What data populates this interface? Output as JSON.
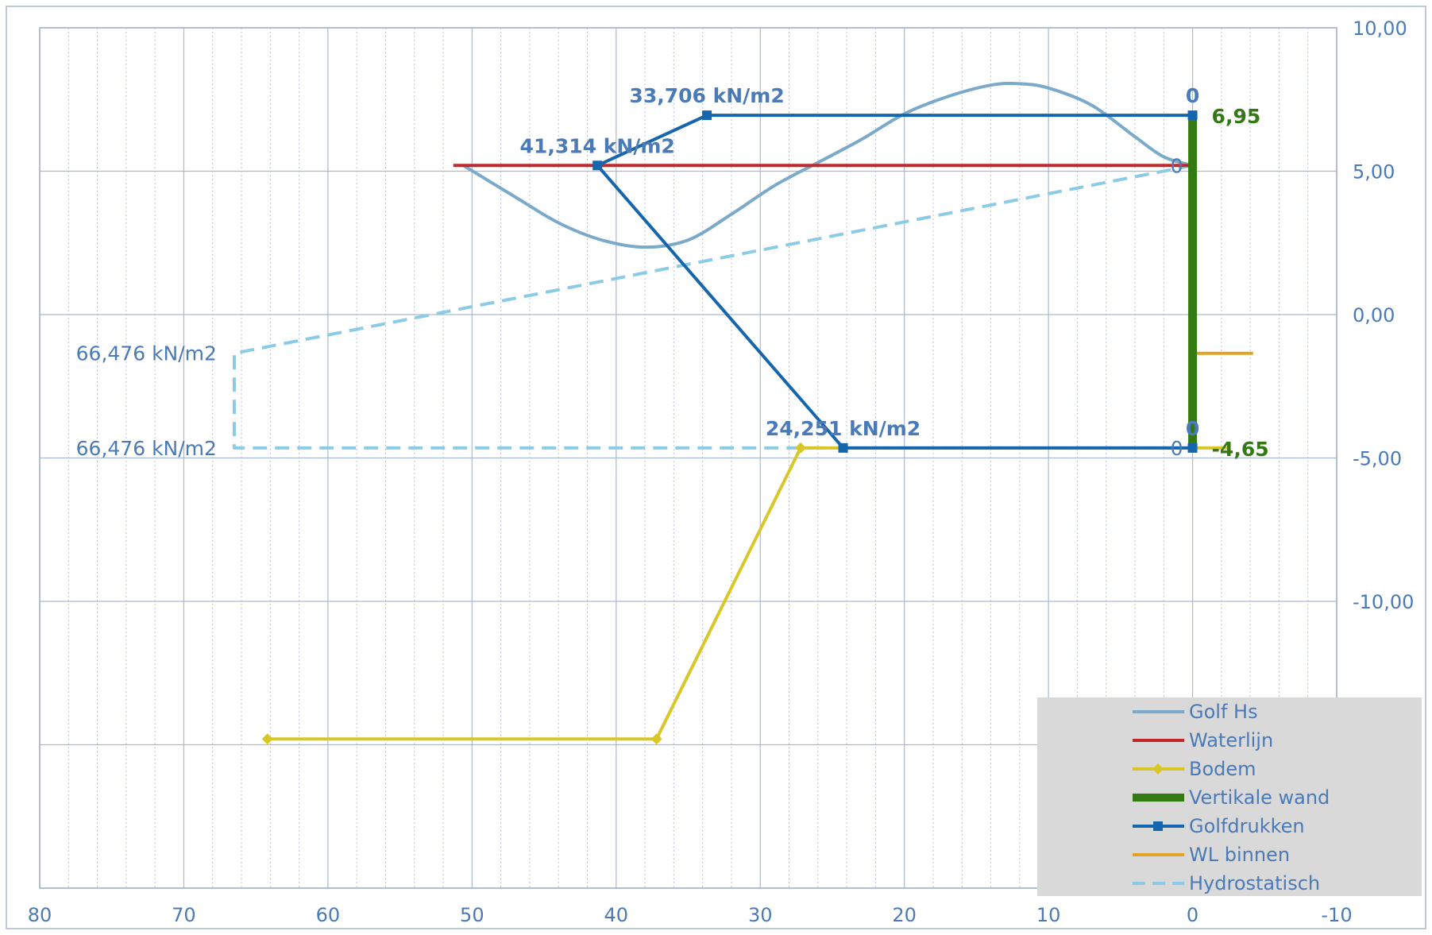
{
  "chart_data": {
    "type": "line",
    "title": "",
    "xlabel": "",
    "ylabel": "",
    "xlim": [
      80,
      -10
    ],
    "ylim": [
      -20,
      10
    ],
    "x_reversed": true,
    "y_axis_position": "right",
    "legend_position": "bottom-right",
    "grid": {
      "major": true,
      "minor_x": true
    },
    "x_ticks": [
      "80",
      "70",
      "60",
      "50",
      "40",
      "30",
      "20",
      "10",
      "0",
      "-10"
    ],
    "x_tick_values": [
      80,
      70,
      60,
      50,
      40,
      30,
      20,
      10,
      0,
      -10
    ],
    "y_ticks": [
      "10,00",
      "5,00",
      "0,00",
      "-5,00",
      "-10,00"
    ],
    "y_tick_values": [
      10,
      5,
      0,
      -5,
      -10
    ],
    "series": [
      {
        "name": "Golf Hs",
        "kind": "curve",
        "color": "#7aa9c9",
        "x": [
          50.6,
          47,
          44,
          41,
          38,
          35,
          32,
          29,
          26,
          23,
          20,
          17,
          14,
          12,
          10,
          7,
          4,
          2,
          0
        ],
        "y": [
          5.2,
          4.1,
          3.2,
          2.6,
          2.35,
          2.6,
          3.5,
          4.5,
          5.3,
          6.1,
          7.0,
          7.6,
          8.0,
          8.05,
          7.9,
          7.3,
          6.2,
          5.5,
          5.2
        ]
      },
      {
        "name": "Waterlijn",
        "kind": "line",
        "color": "#c0282a",
        "x": [
          51.3,
          0
        ],
        "y": [
          5.2,
          5.2
        ]
      },
      {
        "name": "Bodem",
        "kind": "line-diamond",
        "color": "#d9c727",
        "x": [
          64.2,
          37.2,
          27.2,
          0,
          -2.5
        ],
        "y": [
          -14.8,
          -14.8,
          -4.65,
          -4.65,
          -4.65
        ]
      },
      {
        "name": "Vertikale wand",
        "kind": "thick",
        "color": "#347a13",
        "x": [
          0,
          0
        ],
        "y": [
          -4.65,
          6.95
        ]
      },
      {
        "name": "Golfdrukken",
        "kind": "line-square",
        "color": "#1666ad",
        "x": [
          0,
          33.7,
          41.3,
          24.25,
          0
        ],
        "y": [
          6.95,
          6.95,
          5.2,
          -4.65,
          -4.65
        ]
      },
      {
        "name": "WL binnen",
        "kind": "line",
        "color": "#e3a326",
        "x": [
          -0.3,
          -4.2
        ],
        "y": [
          -1.35,
          -1.35
        ]
      },
      {
        "name": "Hydrostatisch",
        "kind": "dashed",
        "color": "#8ccbe6",
        "x": [
          0,
          66.5,
          66.5,
          0
        ],
        "y": [
          5.2,
          -1.35,
          -4.65,
          -4.65
        ]
      }
    ],
    "annotations": [
      {
        "text": "33,706 kN/m2",
        "x": 33.7,
        "y": 6.95,
        "color": "#4a7ab8",
        "bold": true,
        "anchor": "middle",
        "dx": 0,
        "dy": -16
      },
      {
        "text": "41,314 kN/m2",
        "x": 41.3,
        "y": 5.2,
        "color": "#4a7ab8",
        "bold": true,
        "anchor": "middle",
        "dx": 0,
        "dy": -16
      },
      {
        "text": "24,251 kN/m2",
        "x": 24.25,
        "y": -4.65,
        "color": "#4a7ab8",
        "bold": true,
        "anchor": "middle",
        "dx": 0,
        "dy": -16
      },
      {
        "text": "0",
        "x": 0,
        "y": 6.95,
        "color": "#4a7ab8",
        "bold": true,
        "anchor": "middle",
        "dx": 0,
        "dy": -16
      },
      {
        "text": "0",
        "x": 0,
        "y": -4.65,
        "color": "#4a7ab8",
        "bold": true,
        "anchor": "middle",
        "dx": 0,
        "dy": -16
      },
      {
        "text": "6,95",
        "x": 0,
        "y": 6.95,
        "color": "#347a13",
        "bold": true,
        "anchor": "start",
        "dx": 24,
        "dy": 10
      },
      {
        "text": "-4,65",
        "x": 0,
        "y": -4.65,
        "color": "#347a13",
        "bold": true,
        "anchor": "start",
        "dx": 24,
        "dy": 10
      },
      {
        "text": "0",
        "x": 0,
        "y": 5.2,
        "color": "#4a7ab8",
        "bold": false,
        "anchor": "end",
        "dx": -12,
        "dy": 9
      },
      {
        "text": "0",
        "x": 0,
        "y": -4.65,
        "color": "#4a7ab8",
        "bold": false,
        "anchor": "end",
        "dx": -12,
        "dy": 9
      },
      {
        "text": "66,476 kN/m2",
        "x": 66.5,
        "y": -1.35,
        "color": "#4a7ab8",
        "bold": false,
        "anchor": "end",
        "dx": -22,
        "dy": 9
      },
      {
        "text": "66,476 kN/m2",
        "x": 66.5,
        "y": -4.65,
        "color": "#4a7ab8",
        "bold": false,
        "anchor": "end",
        "dx": -22,
        "dy": 9
      }
    ]
  }
}
